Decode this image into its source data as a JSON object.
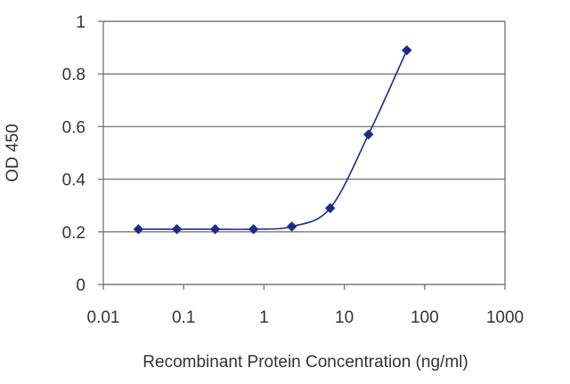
{
  "chart_data": {
    "type": "line",
    "title": "",
    "xlabel": "Recombinant Protein Concentration (ng/ml)",
    "ylabel": "OD 450",
    "x_scale": "log",
    "xlim": [
      0.01,
      1000
    ],
    "ylim": [
      0,
      1
    ],
    "x_ticks": [
      "0.01",
      "0.1",
      "1",
      "10",
      "100",
      "1000"
    ],
    "y_ticks": [
      "0",
      "0.2",
      "0.4",
      "0.6",
      "0.8",
      "1"
    ],
    "grid": "horizontal",
    "legend": "none",
    "series": [
      {
        "color": "#1a2a8c",
        "marker": "diamond",
        "points": [
          {
            "x": 0.0274,
            "y": 0.21
          },
          {
            "x": 0.0823,
            "y": 0.21
          },
          {
            "x": 0.247,
            "y": 0.21
          },
          {
            "x": 0.741,
            "y": 0.21
          },
          {
            "x": 2.22,
            "y": 0.22
          },
          {
            "x": 6.67,
            "y": 0.29
          },
          {
            "x": 20,
            "y": 0.57
          },
          {
            "x": 60,
            "y": 0.89
          }
        ]
      }
    ]
  }
}
